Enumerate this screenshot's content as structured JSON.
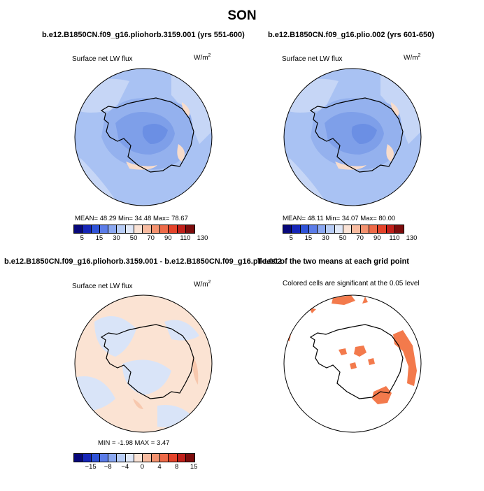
{
  "figure": {
    "title": "SON",
    "panels": [
      {
        "id": "p1",
        "title": "b.e12.B1850CN.f09_g16.pliohorb.3159.001 (yrs 551-600)",
        "left_label": "Surface net LW flux",
        "units": "W/m",
        "units_sup": "2",
        "stats": "MEAN=   48.29   Min=   34.48   Max=   78.67"
      },
      {
        "id": "p2",
        "title": "b.e12.B1850CN.f09_g16.plio.002 (yrs 601-650)",
        "left_label": "Surface net LW flux",
        "units": "W/m",
        "units_sup": "2",
        "stats": "MEAN=   48.11   Min=   34.07   Max=   80.00"
      },
      {
        "id": "p3",
        "title": "b.e12.B1850CN.f09_g16.pliohorb.3159.001 - b.e12.B1850CN.f09_g16.plio.002",
        "left_label": "Surface net LW flux",
        "units": "W/m",
        "units_sup": "2",
        "stats": "MIN =   -1.98  MAX =     3.47"
      },
      {
        "id": "p4",
        "title": "T-test of the two means at each grid point",
        "center_label": "Colored cells are significant at the 0.05 level"
      }
    ],
    "colorbar_abs": {
      "colors": [
        "#08087a",
        "#1626b8",
        "#2f53d8",
        "#5b7ce8",
        "#8aa7f0",
        "#b7ccf5",
        "#e0e8f8",
        "#fae3d6",
        "#f7bba0",
        "#f3926f",
        "#ee6a48",
        "#e4432a",
        "#c0201a",
        "#7c0c0c"
      ],
      "tick_labels": [
        "5",
        "15",
        "30",
        "50",
        "70",
        "90",
        "110",
        "130"
      ]
    },
    "colorbar_diff": {
      "colors": [
        "#08087a",
        "#1626b8",
        "#2f53d8",
        "#5b7ce8",
        "#8aa7f0",
        "#b7ccf5",
        "#e0e8f8",
        "#fae3d6",
        "#f7bba0",
        "#f3926f",
        "#ee6a48",
        "#e4432a",
        "#c0201a",
        "#7c0c0c"
      ],
      "tick_labels": [
        "-15",
        "-8",
        "-4",
        "0",
        "4",
        "8",
        "15"
      ]
    },
    "map_colors": {
      "ocean_abs": "#a9c2f3",
      "ocean_abs_light": "#c6d6f6",
      "interior_abs_dark": "#7e9fe9",
      "interior_abs_mid": "#94b1ee",
      "warm_patch": "#f8dccb",
      "diff_warm": "#fbe3d3",
      "diff_cool": "#d9e4f8",
      "signif": "#f37a4c"
    }
  },
  "chart_data": {
    "type": "heatmap",
    "title": "SON",
    "panels": [
      {
        "title": "b.e12.B1850CN.f09_g16.pliohorb.3159.001 (yrs 551-600)",
        "variable": "Surface net LW flux",
        "units": "W/m2",
        "mean": 48.29,
        "min": 34.48,
        "max": 78.67,
        "colorbar_ticks": [
          5,
          15,
          30,
          50,
          70,
          90,
          110,
          130
        ]
      },
      {
        "title": "b.e12.B1850CN.f09_g16.plio.002 (yrs 601-650)",
        "variable": "Surface net LW flux",
        "units": "W/m2",
        "mean": 48.11,
        "min": 34.07,
        "max": 80.0,
        "colorbar_ticks": [
          5,
          15,
          30,
          50,
          70,
          90,
          110,
          130
        ]
      },
      {
        "title": "b.e12.B1850CN.f09_g16.pliohorb.3159.001 - b.e12.B1850CN.f09_g16.plio.002",
        "variable": "Surface net LW flux",
        "units": "W/m2",
        "min": -1.98,
        "max": 3.47,
        "colorbar_ticks": [
          -15,
          -8,
          -4,
          0,
          4,
          8,
          15
        ]
      },
      {
        "title": "T-test of the two means at each grid point",
        "note": "Colored cells are significant at the 0.05 level"
      }
    ]
  }
}
